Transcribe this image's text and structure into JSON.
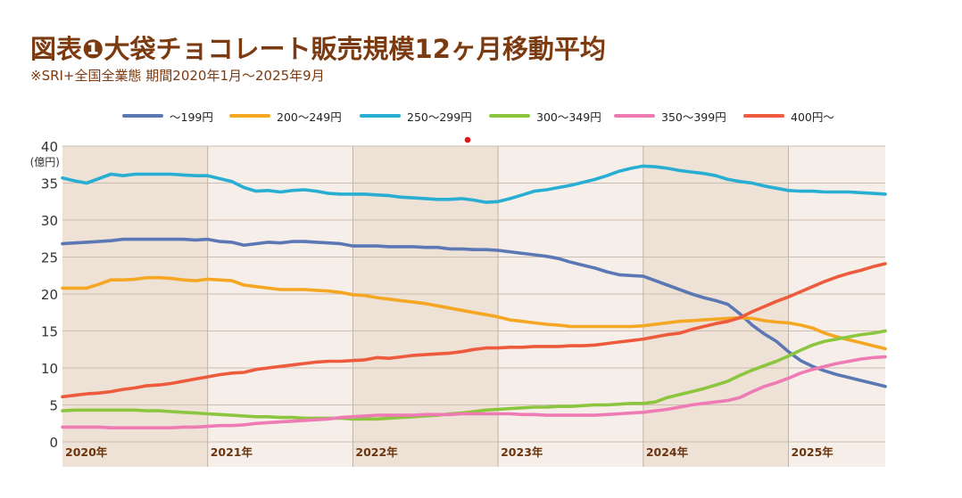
{
  "title": "図表❶大袋チョコレート販売規模12ヶ月移動平均",
  "subtitle": "※SRI+全国全業態 期間2020年1月〜2025年9月",
  "chart_data": {
    "type": "line",
    "title": "図表❶大袋チョコレート販売規模12ヶ月移動平均",
    "subtitle": "※SRI+全国全業態 期間2020年1月〜2025年9月",
    "ylabel": "(億円)",
    "ylim": [
      0,
      40
    ],
    "yticks": [
      "0",
      "5",
      "10",
      "15",
      "20",
      "25",
      "30",
      "35",
      "40"
    ],
    "xrange": [
      "2020-01",
      "2025-09"
    ],
    "xticks": [
      "2020年",
      "2021年",
      "2022年",
      "2023年",
      "2024年",
      "2025年"
    ],
    "x_frequency": "monthly",
    "grid": true,
    "legend": "top",
    "band_colors": {
      "dark": "#eee1d6",
      "light": "#f6efe9"
    },
    "series": [
      {
        "name": "〜199円",
        "color": "#5b78b4",
        "values": [
          26.8,
          26.9,
          27.0,
          27.1,
          27.2,
          27.4,
          27.4,
          27.4,
          27.4,
          27.4,
          27.4,
          27.3,
          27.4,
          27.1,
          27.0,
          26.6,
          26.8,
          27.0,
          26.9,
          27.1,
          27.1,
          27.0,
          26.9,
          26.8,
          26.5,
          26.5,
          26.5,
          26.4,
          26.4,
          26.4,
          26.3,
          26.3,
          26.1,
          26.1,
          26.0,
          26.0,
          25.9,
          25.7,
          25.5,
          25.3,
          25.1,
          24.8,
          24.3,
          23.9,
          23.5,
          23.0,
          22.6,
          22.5,
          22.4,
          21.8,
          21.2,
          20.6,
          20.0,
          19.5,
          19.1,
          18.6,
          17.3,
          15.8,
          14.6,
          13.6,
          12.2,
          11.0,
          10.2,
          9.6,
          9.1,
          8.7,
          8.3,
          7.9,
          7.5
        ]
      },
      {
        "name": "200〜249円",
        "color": "#f5a623",
        "values": [
          20.8,
          20.8,
          20.8,
          21.3,
          21.9,
          21.9,
          22.0,
          22.2,
          22.2,
          22.1,
          21.9,
          21.8,
          22.0,
          21.9,
          21.8,
          21.2,
          21.0,
          20.8,
          20.6,
          20.6,
          20.6,
          20.5,
          20.4,
          20.2,
          19.9,
          19.8,
          19.5,
          19.3,
          19.1,
          18.9,
          18.7,
          18.4,
          18.1,
          17.8,
          17.5,
          17.2,
          16.9,
          16.5,
          16.3,
          16.1,
          15.9,
          15.8,
          15.6,
          15.6,
          15.6,
          15.6,
          15.6,
          15.6,
          15.7,
          15.9,
          16.1,
          16.3,
          16.4,
          16.5,
          16.6,
          16.7,
          16.8,
          16.7,
          16.4,
          16.2,
          16.1,
          15.8,
          15.4,
          14.7,
          14.2,
          13.8,
          13.4,
          13.0,
          12.6
        ]
      },
      {
        "name": "250〜299円",
        "color": "#28aed3",
        "values": [
          35.7,
          35.3,
          35.0,
          35.6,
          36.2,
          36.0,
          36.2,
          36.2,
          36.2,
          36.2,
          36.1,
          36.0,
          36.0,
          35.6,
          35.2,
          34.4,
          33.9,
          34.0,
          33.8,
          34.0,
          34.1,
          33.9,
          33.6,
          33.5,
          33.5,
          33.5,
          33.4,
          33.3,
          33.1,
          33.0,
          32.9,
          32.8,
          32.8,
          32.9,
          32.7,
          32.4,
          32.5,
          32.9,
          33.4,
          33.9,
          34.1,
          34.4,
          34.7,
          35.1,
          35.5,
          36.0,
          36.6,
          37.0,
          37.3,
          37.2,
          37.0,
          36.7,
          36.5,
          36.3,
          36.0,
          35.5,
          35.2,
          35.0,
          34.6,
          34.3,
          34.0,
          33.9,
          33.9,
          33.8,
          33.8,
          33.8,
          33.7,
          33.6,
          33.5
        ]
      },
      {
        "name": "300〜349円",
        "color": "#8cc63f",
        "values": [
          4.2,
          4.3,
          4.3,
          4.3,
          4.3,
          4.3,
          4.3,
          4.2,
          4.2,
          4.1,
          4.0,
          3.9,
          3.8,
          3.7,
          3.6,
          3.5,
          3.4,
          3.4,
          3.3,
          3.3,
          3.2,
          3.2,
          3.2,
          3.2,
          3.1,
          3.1,
          3.1,
          3.2,
          3.3,
          3.4,
          3.5,
          3.6,
          3.8,
          3.9,
          4.1,
          4.3,
          4.4,
          4.5,
          4.6,
          4.7,
          4.7,
          4.8,
          4.8,
          4.9,
          5.0,
          5.0,
          5.1,
          5.2,
          5.2,
          5.4,
          6.0,
          6.4,
          6.8,
          7.2,
          7.7,
          8.2,
          9.0,
          9.7,
          10.3,
          10.9,
          11.6,
          12.4,
          13.1,
          13.6,
          13.9,
          14.2,
          14.5,
          14.7,
          15.0
        ]
      },
      {
        "name": "350〜399円",
        "color": "#ee7bb4",
        "values": [
          2.0,
          2.0,
          2.0,
          2.0,
          1.9,
          1.9,
          1.9,
          1.9,
          1.9,
          1.9,
          2.0,
          2.0,
          2.1,
          2.2,
          2.2,
          2.3,
          2.5,
          2.6,
          2.7,
          2.8,
          2.9,
          3.0,
          3.1,
          3.3,
          3.4,
          3.5,
          3.6,
          3.6,
          3.6,
          3.6,
          3.7,
          3.7,
          3.7,
          3.8,
          3.8,
          3.8,
          3.8,
          3.8,
          3.7,
          3.7,
          3.6,
          3.6,
          3.6,
          3.6,
          3.6,
          3.7,
          3.8,
          3.9,
          4.0,
          4.2,
          4.4,
          4.7,
          5.0,
          5.2,
          5.4,
          5.6,
          6.0,
          6.8,
          7.5,
          8.0,
          8.6,
          9.3,
          9.8,
          10.2,
          10.6,
          10.9,
          11.2,
          11.4,
          11.5
        ]
      },
      {
        "name": "400円〜",
        "color": "#ee5a3c",
        "values": [
          6.1,
          6.3,
          6.5,
          6.6,
          6.8,
          7.1,
          7.3,
          7.6,
          7.7,
          7.9,
          8.2,
          8.5,
          8.8,
          9.1,
          9.3,
          9.4,
          9.8,
          10.0,
          10.2,
          10.4,
          10.6,
          10.8,
          10.9,
          10.9,
          11.0,
          11.1,
          11.4,
          11.3,
          11.5,
          11.7,
          11.8,
          11.9,
          12.0,
          12.2,
          12.5,
          12.7,
          12.7,
          12.8,
          12.8,
          12.9,
          12.9,
          12.9,
          13.0,
          13.0,
          13.1,
          13.3,
          13.5,
          13.7,
          13.9,
          14.2,
          14.5,
          14.7,
          15.2,
          15.6,
          16.0,
          16.3,
          16.8,
          17.6,
          18.3,
          19.0,
          19.6,
          20.3,
          21.0,
          21.7,
          22.3,
          22.8,
          23.2,
          23.7,
          24.1
        ]
      }
    ]
  }
}
